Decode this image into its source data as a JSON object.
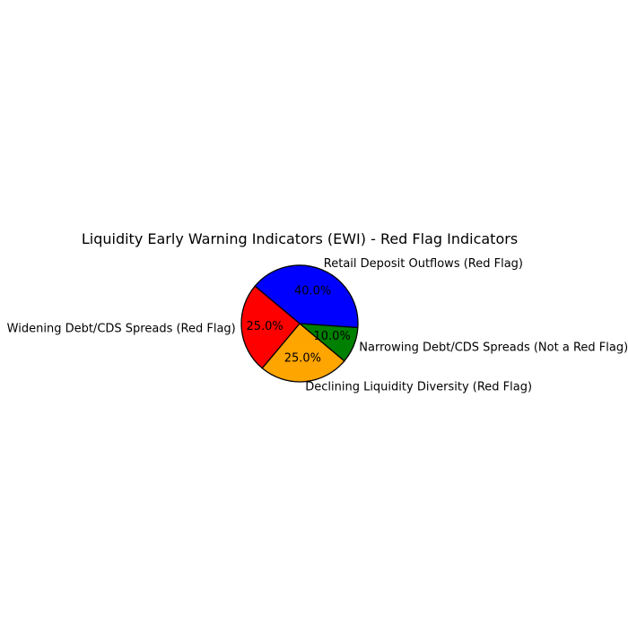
{
  "chart_data": {
    "type": "pie",
    "title": "Liquidity Early Warning Indicators (EWI) - Red Flag Indicators",
    "start_angle_deg": 140,
    "direction": "clockwise",
    "edge_color": "#000000",
    "slices": [
      {
        "label": "Retail Deposit Outflows (Red Flag)",
        "value": 40,
        "pct_label": "40.0%",
        "color": "#0000ff"
      },
      {
        "label": "Narrowing Debt/CDS Spreads (Not a Red Flag)",
        "value": 10,
        "pct_label": "10.0%",
        "color": "#008000"
      },
      {
        "label": "Declining Liquidity Diversity (Red Flag)",
        "value": 25,
        "pct_label": "25.0%",
        "color": "#ffa500"
      },
      {
        "label": "Widening Debt/CDS Spreads (Red Flag)",
        "value": 25,
        "pct_label": "25.0%",
        "color": "#ff0000"
      }
    ]
  }
}
